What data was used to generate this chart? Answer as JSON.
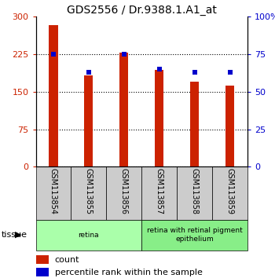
{
  "title": "GDS2556 / Dr.9388.1.A1_at",
  "samples": [
    "GSM113854",
    "GSM113855",
    "GSM113856",
    "GSM113857",
    "GSM113858",
    "GSM113859"
  ],
  "counts": [
    283,
    183,
    228,
    193,
    170,
    163
  ],
  "percentiles": [
    75,
    63,
    75,
    65,
    63,
    63
  ],
  "ylim_left": [
    0,
    300
  ],
  "ylim_right": [
    0,
    100
  ],
  "yticks_left": [
    0,
    75,
    150,
    225,
    300
  ],
  "yticks_right": [
    0,
    25,
    50,
    75,
    100
  ],
  "ytick_labels_left": [
    "0",
    "75",
    "150",
    "225",
    "300"
  ],
  "ytick_labels_right": [
    "0",
    "25",
    "50",
    "75",
    "100%"
  ],
  "bar_color": "#cc2200",
  "marker_color": "#0000cc",
  "tissue_groups": [
    {
      "label": "retina",
      "start": 0,
      "end": 3,
      "color": "#aaffaa"
    },
    {
      "label": "retina with retinal pigment\nepithelium",
      "start": 3,
      "end": 6,
      "color": "#88ee88"
    }
  ],
  "tissue_label": "tissue",
  "legend_count": "count",
  "legend_percentile": "percentile rank within the sample",
  "bg_color": "#ffffff",
  "plot_bg": "#ffffff",
  "grid_color": "#000000",
  "sample_box_color": "#cccccc",
  "title_fontsize": 10,
  "tick_fontsize": 8,
  "label_fontsize": 8,
  "sample_fontsize": 7,
  "tissue_fontsize": 8
}
